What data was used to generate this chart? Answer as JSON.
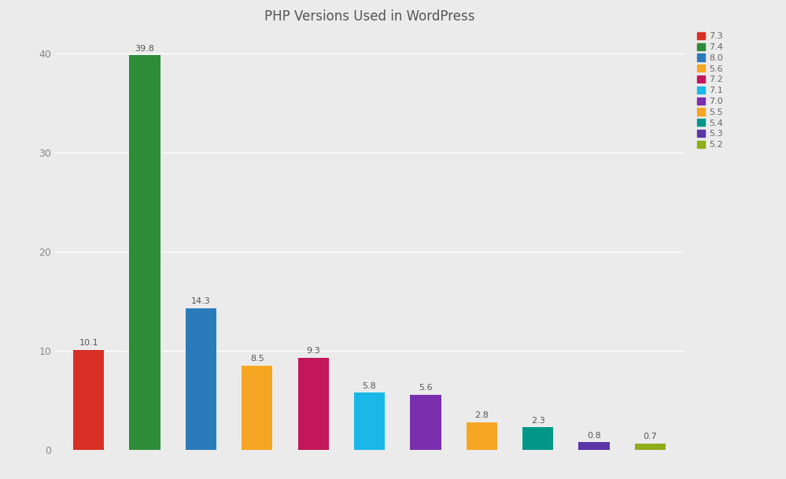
{
  "title": "PHP Versions Used in WordPress",
  "categories": [
    "7.3",
    "7.4",
    "8.0",
    "5.6",
    "7.2",
    "7.1",
    "7.0",
    "5.5",
    "5.4",
    "5.3",
    "5.2"
  ],
  "values": [
    10.1,
    39.8,
    14.3,
    8.5,
    9.3,
    5.8,
    5.6,
    2.8,
    2.3,
    0.8,
    0.7
  ],
  "colors": [
    "#d93025",
    "#2e8b37",
    "#2b7bba",
    "#f5a623",
    "#c2185b",
    "#1ab8e8",
    "#7b2fae",
    "#f5a623",
    "#009688",
    "#5c35a7",
    "#8fac1a"
  ],
  "ylim": [
    0,
    42
  ],
  "yticks": [
    0,
    10,
    20,
    30,
    40
  ],
  "background_color": "#ebebeb",
  "plot_bg_color": "#ebebeb",
  "title_fontsize": 12,
  "label_fontsize": 8,
  "legend_labels": [
    "7.3",
    "7.4",
    "8.0",
    "5.6",
    "7.2",
    "7.1",
    "7.0",
    "5.5",
    "5.4",
    "5.3",
    "5.2"
  ]
}
